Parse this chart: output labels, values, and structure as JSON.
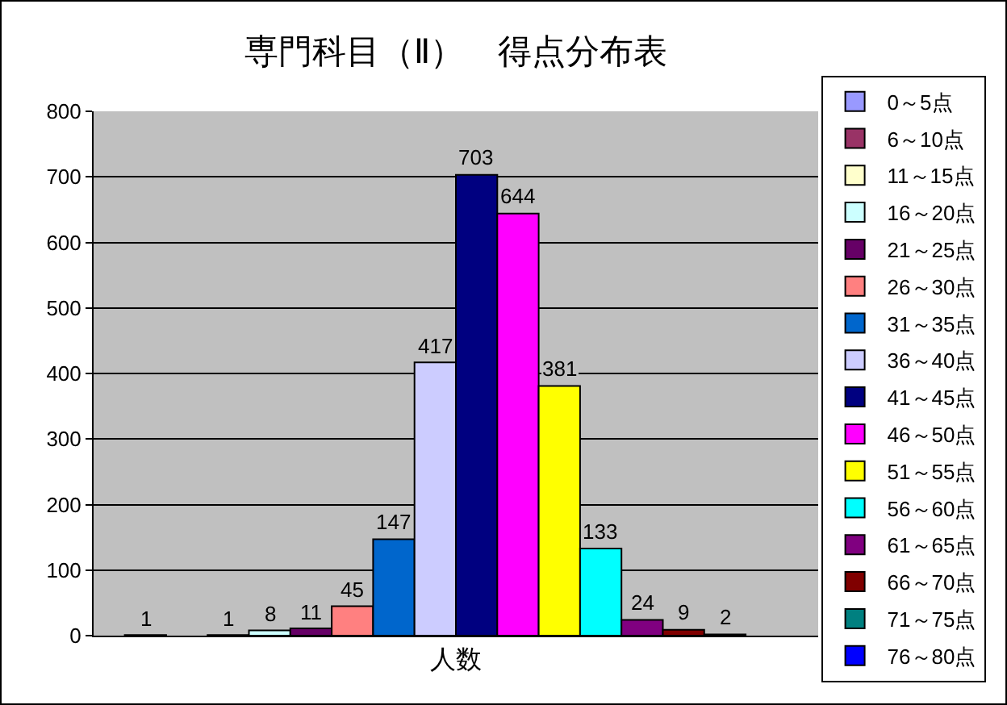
{
  "chart_data": {
    "type": "bar",
    "title": "専門科目（Ⅱ）　得点分布表",
    "categories": [
      "人数"
    ],
    "series": [
      {
        "name": "0～5点",
        "color": "#9999ff",
        "values": [
          1
        ]
      },
      {
        "name": "6～10点",
        "color": "#993366",
        "values": [
          null
        ]
      },
      {
        "name": "11～15点",
        "color": "#ffffcc",
        "values": [
          1
        ]
      },
      {
        "name": "16～20点",
        "color": "#ccffff",
        "values": [
          8
        ]
      },
      {
        "name": "21～25点",
        "color": "#660066",
        "values": [
          11
        ]
      },
      {
        "name": "26～30点",
        "color": "#ff8080",
        "values": [
          45
        ]
      },
      {
        "name": "31～35点",
        "color": "#0066cc",
        "values": [
          147
        ]
      },
      {
        "name": "36～40点",
        "color": "#ccccff",
        "values": [
          417
        ]
      },
      {
        "name": "41～45点",
        "color": "#000080",
        "values": [
          703
        ]
      },
      {
        "name": "46～50点",
        "color": "#ff00ff",
        "values": [
          644
        ]
      },
      {
        "name": "51～55点",
        "color": "#ffff00",
        "values": [
          381
        ]
      },
      {
        "name": "56～60点",
        "color": "#00ffff",
        "values": [
          133
        ]
      },
      {
        "name": "61～65点",
        "color": "#800080",
        "values": [
          24
        ]
      },
      {
        "name": "66～70点",
        "color": "#800000",
        "values": [
          9
        ]
      },
      {
        "name": "71～75点",
        "color": "#008080",
        "values": [
          2
        ]
      },
      {
        "name": "76～80点",
        "color": "#0000ff",
        "values": [
          null
        ]
      }
    ],
    "ylim": [
      0,
      800
    ],
    "yticks": [
      0,
      100,
      200,
      300,
      400,
      500,
      600,
      700,
      800
    ],
    "grid": "y",
    "legend": "right",
    "data_labels": true
  }
}
